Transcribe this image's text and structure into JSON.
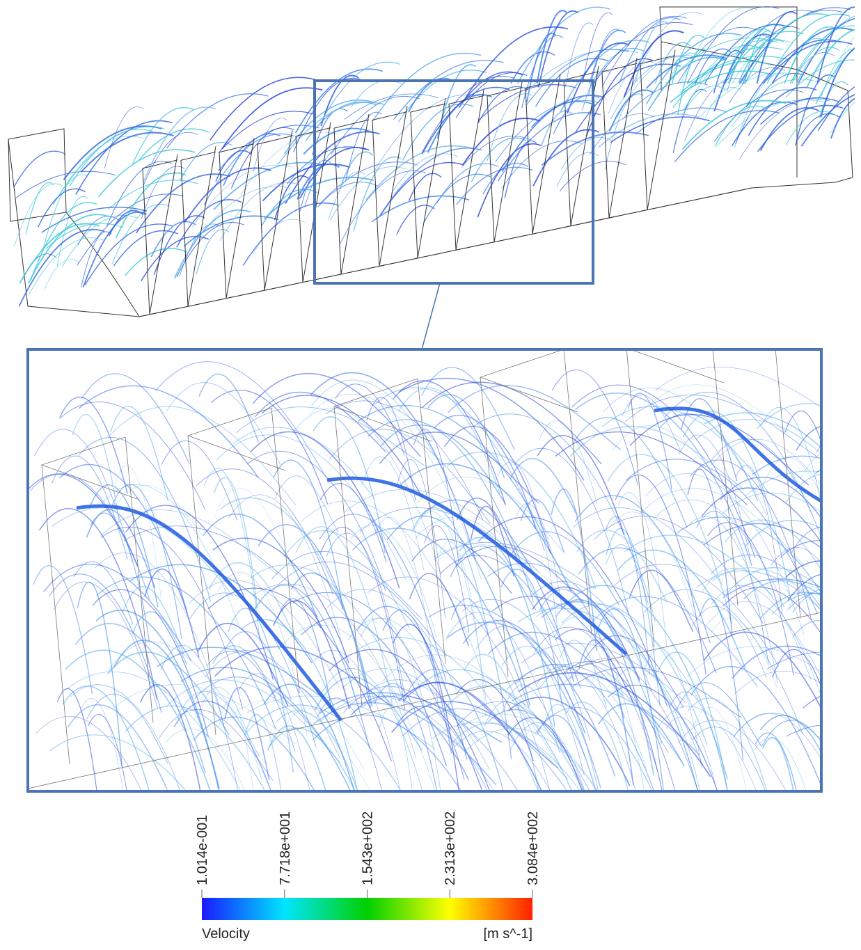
{
  "legend": {
    "title": "Velocity",
    "unit": "[m s^-1]",
    "ticks": [
      {
        "value": 0.1014,
        "label": "1.014e-001"
      },
      {
        "value": 77.18,
        "label": "7.718e+001"
      },
      {
        "value": 154.3,
        "label": "1.543e+002"
      },
      {
        "value": 231.3,
        "label": "2.313e+002"
      },
      {
        "value": 308.4,
        "label": "3.084e+002"
      }
    ]
  }
}
